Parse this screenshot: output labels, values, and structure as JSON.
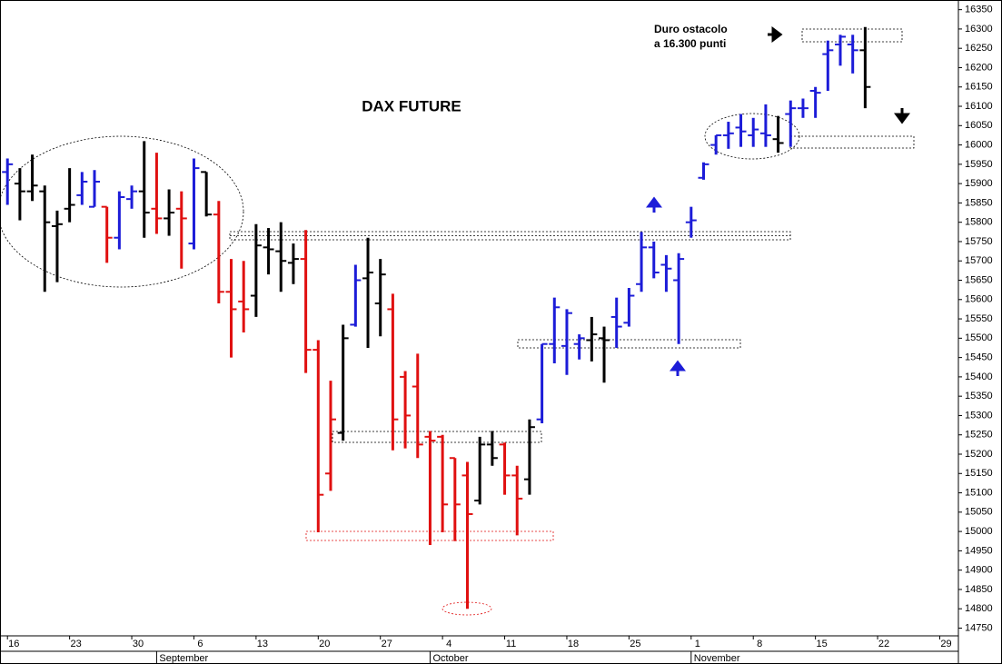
{
  "chart_data": {
    "type": "ohlc",
    "title": "DAX FUTURE",
    "annotations": [
      "Duro ostacolo",
      "a 16.300 punti"
    ],
    "x": [
      0,
      1,
      2,
      3,
      4,
      5,
      6,
      7,
      8,
      9,
      10,
      11,
      12,
      13,
      14,
      15,
      16,
      17,
      18,
      19,
      20,
      21,
      22,
      23,
      24,
      25,
      26,
      27,
      28,
      29,
      30,
      31,
      32,
      33,
      34,
      35,
      36,
      37,
      38,
      39,
      40,
      41,
      42,
      43,
      44,
      45,
      46,
      47,
      48,
      49,
      50,
      51,
      52,
      53,
      54,
      55,
      56,
      57,
      58,
      59,
      60,
      61,
      62,
      63,
      64,
      65,
      66,
      67,
      68,
      69
    ],
    "open": [
      15930,
      15900,
      15880,
      15880,
      15790,
      15835,
      15870,
      15840,
      15840,
      15760,
      15860,
      15880,
      15835,
      15810,
      15835,
      15745,
      15930,
      15820,
      15620,
      15595,
      15610,
      15735,
      15725,
      15695,
      15705,
      15470,
      15150,
      15255,
      15535,
      15655,
      15590,
      15575,
      15400,
      15375,
      15245,
      15245,
      15190,
      15145,
      15080,
      15225,
      15225,
      15145,
      15135,
      15290,
      15485,
      15480,
      15485,
      15495,
      15500,
      15555,
      15540,
      15640,
      15735,
      15690,
      15650,
      15800,
      15915,
      16000,
      16025,
      16045,
      16025,
      16030,
      16015,
      16080,
      16095,
      16140,
      16235,
      16260,
      16260,
      16245
    ],
    "high": [
      15965,
      15940,
      15975,
      15895,
      15830,
      15940,
      15930,
      15935,
      15840,
      15880,
      15895,
      16010,
      15980,
      15885,
      15880,
      15965,
      15930,
      15855,
      15705,
      15700,
      15795,
      15785,
      15800,
      15745,
      15780,
      15495,
      15390,
      15535,
      15690,
      15760,
      15705,
      15615,
      15415,
      15460,
      15260,
      15250,
      15190,
      15180,
      15245,
      15260,
      15230,
      15170,
      15290,
      15485,
      15605,
      15575,
      15510,
      15555,
      15530,
      15605,
      15630,
      15775,
      15750,
      15715,
      15720,
      15840,
      15955,
      16025,
      16060,
      16080,
      16070,
      16105,
      16075,
      16115,
      16120,
      16150,
      16270,
      16285,
      16285,
      16305
    ],
    "low": [
      15845,
      15805,
      15855,
      15620,
      15645,
      15800,
      15845,
      15840,
      15695,
      15730,
      15835,
      15760,
      15770,
      15765,
      15680,
      15730,
      15815,
      15590,
      15450,
      15515,
      15555,
      15665,
      15620,
      15640,
      15410,
      14998,
      15105,
      15235,
      15530,
      15475,
      15505,
      15210,
      15215,
      15190,
      14965,
      14998,
      14975,
      14800,
      15070,
      15170,
      15095,
      14990,
      15095,
      15280,
      15435,
      15405,
      15445,
      15440,
      15385,
      15475,
      15530,
      15620,
      15655,
      15620,
      15485,
      15760,
      15910,
      15975,
      15990,
      15995,
      15995,
      15995,
      15980,
      15995,
      16070,
      16070,
      16140,
      16205,
      16185,
      16095
    ],
    "close": [
      15950,
      15880,
      15895,
      15800,
      15795,
      15845,
      15905,
      15905,
      15760,
      15865,
      15880,
      15825,
      15810,
      15825,
      15810,
      15940,
      15820,
      15620,
      15575,
      15575,
      15740,
      15730,
      15700,
      15705,
      15470,
      15095,
      15290,
      15500,
      15650,
      15670,
      15665,
      15290,
      15300,
      15225,
      15235,
      15070,
      15070,
      15045,
      15225,
      15190,
      15145,
      15085,
      15270,
      15485,
      15580,
      15565,
      15500,
      15510,
      15495,
      15530,
      15610,
      15735,
      15670,
      15680,
      15705,
      15805,
      15950,
      16025,
      16030,
      16035,
      16040,
      16025,
      16005,
      16095,
      16095,
      16135,
      16245,
      16280,
      16245,
      16150
    ],
    "colors": [
      "#1c1cd8",
      "#000000",
      "#000000",
      "#000000",
      "#000000",
      "#000000",
      "#1c1cd8",
      "#1c1cd8",
      "#e01010",
      "#1c1cd8",
      "#1c1cd8",
      "#000000",
      "#e01010",
      "#000000",
      "#e01010",
      "#1c1cd8",
      "#000000",
      "#e01010",
      "#e01010",
      "#e01010",
      "#000000",
      "#000000",
      "#000000",
      "#000000",
      "#e01010",
      "#e01010",
      "#e01010",
      "#000000",
      "#1c1cd8",
      "#000000",
      "#000000",
      "#e01010",
      "#e01010",
      "#e01010",
      "#e01010",
      "#e01010",
      "#e01010",
      "#e01010",
      "#000000",
      "#000000",
      "#e01010",
      "#e01010",
      "#000000",
      "#1c1cd8",
      "#1c1cd8",
      "#1c1cd8",
      "#1c1cd8",
      "#000000",
      "#000000",
      "#1c1cd8",
      "#1c1cd8",
      "#1c1cd8",
      "#1c1cd8",
      "#1c1cd8",
      "#1c1cd8",
      "#1c1cd8",
      "#1c1cd8",
      "#1c1cd8",
      "#1c1cd8",
      "#1c1cd8",
      "#1c1cd8",
      "#1c1cd8",
      "#000000",
      "#1c1cd8",
      "#1c1cd8",
      "#1c1cd8",
      "#1c1cd8",
      "#1c1cd8",
      "#1c1cd8",
      "#000000"
    ],
    "xlim": [
      -0.6,
      76.5
    ],
    "xticks": [
      {
        "value": 0,
        "label": "16"
      },
      {
        "value": 5,
        "label": "23"
      },
      {
        "value": 10,
        "label": "30"
      },
      {
        "value": 15,
        "label": "6"
      },
      {
        "value": 20,
        "label": "13"
      },
      {
        "value": 25,
        "label": "20"
      },
      {
        "value": 30,
        "label": "27"
      },
      {
        "value": 35,
        "label": "4"
      },
      {
        "value": 40,
        "label": "11"
      },
      {
        "value": 45,
        "label": "18"
      },
      {
        "value": 50,
        "label": "25"
      },
      {
        "value": 55,
        "label": "1"
      },
      {
        "value": 60,
        "label": "8"
      },
      {
        "value": 65,
        "label": "15"
      },
      {
        "value": 70,
        "label": "22"
      },
      {
        "value": 75,
        "label": "29"
      }
    ],
    "month_ticks": [
      {
        "value": 12,
        "label": "September"
      },
      {
        "value": 34,
        "label": "October"
      },
      {
        "value": 55,
        "label": "November"
      }
    ],
    "ylim": [
      14730,
      16375
    ],
    "yticks": [
      14750,
      14800,
      14850,
      14900,
      14950,
      15000,
      15050,
      15100,
      15150,
      15200,
      15250,
      15300,
      15350,
      15400,
      15450,
      15500,
      15550,
      15600,
      15650,
      15700,
      15750,
      15800,
      15850,
      15900,
      15950,
      16000,
      16050,
      16100,
      16150,
      16200,
      16250,
      16300,
      16350
    ],
    "grid": false
  }
}
